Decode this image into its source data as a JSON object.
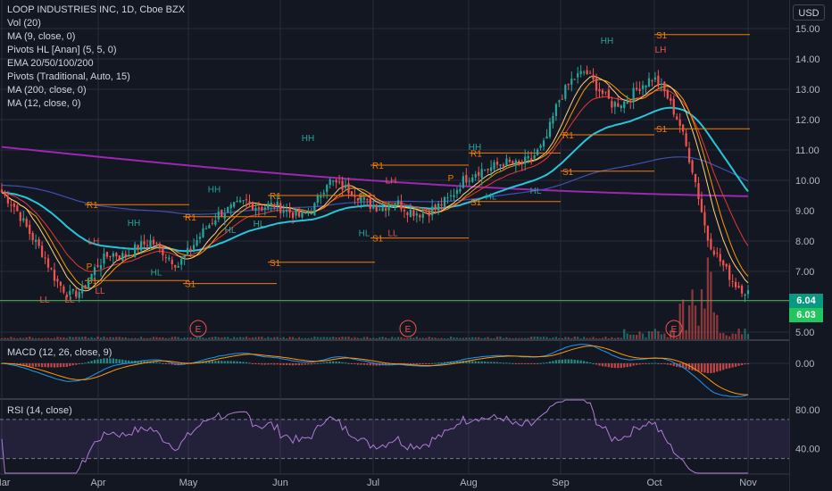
{
  "header": {
    "title": "LOOP INDUSTRIES INC, 1D, Cboe BZX",
    "indicators": [
      "Vol (20)",
      "MA (9, close, 0)",
      "Pivots HL [Anan] (5, 5, 0)",
      "EMA 20/50/100/200",
      "Pivots (Traditional, Auto, 15)",
      "MA (200, close, 0)",
      "MA (12, close, 0)"
    ],
    "currency_button": "USD"
  },
  "macd_label": "MACD (12, 26, close, 9)",
  "rsi_label": "RSI (14, close)",
  "colors": {
    "background": "#131722",
    "grid": "#2a2e39",
    "up": "#26a69a",
    "down": "#ef5350",
    "orange": "#f7a35c",
    "teal": "#26c6da",
    "purple": "#9c27b0",
    "blue": "#2962ff",
    "green_line": "#4caf50",
    "rsi_band": "#7e57c2"
  },
  "chart_data": [
    {
      "type": "candlestick",
      "title": "LOOP INDUSTRIES INC, 1D, Cboe BZX",
      "x_ticks": [
        "Mar",
        "Apr",
        "May",
        "Jun",
        "Jul",
        "Aug",
        "Sep",
        "Oct",
        "Nov"
      ],
      "y_ticks": [
        "5.00",
        "6.00",
        "7.00",
        "8.00",
        "9.00",
        "10.00",
        "11.00",
        "12.00",
        "13.00",
        "14.00",
        "15.00"
      ],
      "ylim": [
        4.7,
        15.3
      ],
      "last_price": "6.04",
      "reference_price": "6.03",
      "close_path": [
        9.6,
        9.1,
        8.3,
        7.6,
        6.7,
        6.2,
        6.4,
        7.2,
        7.6,
        7.5,
        7.8,
        8.0,
        7.6,
        7.2,
        7.8,
        8.4,
        8.9,
        9.1,
        9.3,
        9.1,
        9.2,
        9.0,
        8.8,
        9.1,
        10.0,
        9.8,
        9.6,
        9.2,
        9.1,
        9.3,
        9.0,
        8.9,
        9.1,
        9.4,
        10.0,
        10.3,
        10.4,
        10.6,
        10.5,
        10.7,
        11.2,
        12.6,
        13.3,
        13.6,
        13.0,
        12.5,
        12.6,
        13.1,
        13.4,
        12.8,
        11.8,
        10.2,
        8.1,
        7.3,
        6.6,
        6.3
      ],
      "earnings_markers": [
        "E",
        "E",
        "E"
      ],
      "pivot_labels": [
        "R1",
        "R1",
        "R1",
        "R1",
        "R1",
        "R1",
        "S1",
        "S1",
        "S1",
        "S1",
        "S1",
        "S1",
        "S1",
        "P",
        "P",
        "P",
        "HH",
        "HH",
        "HH",
        "HH",
        "HH",
        "HH",
        "LH",
        "LH",
        "LH",
        "HL",
        "HL",
        "HL",
        "HL",
        "HL",
        "HL",
        "LL",
        "LL",
        "LL",
        "LL"
      ]
    },
    {
      "type": "histogram",
      "title": "MACD (12, 26, close, 9)",
      "y_ticks": [
        "0.00"
      ],
      "ylim": [
        -1.3,
        0.8
      ]
    },
    {
      "type": "line",
      "title": "RSI (14, close)",
      "y_ticks": [
        "80.00",
        "40.00"
      ],
      "ylim": [
        15,
        90
      ],
      "upper_band": 70,
      "lower_band": 30
    }
  ]
}
